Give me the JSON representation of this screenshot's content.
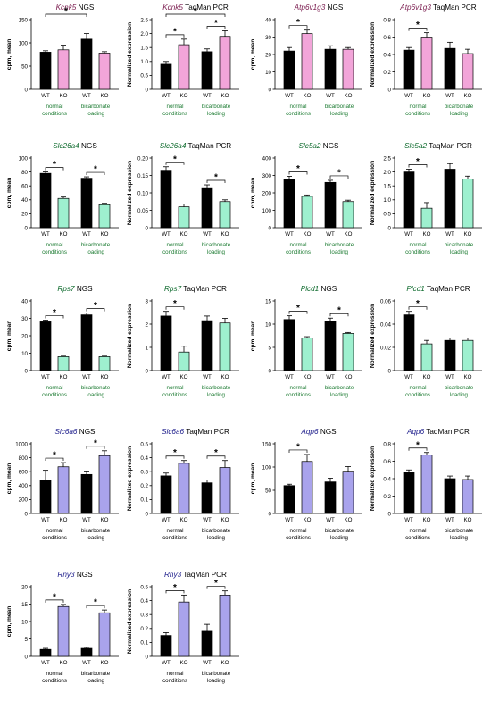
{
  "colors": {
    "wt": "#000000",
    "ko_pink": "#f2a5d9",
    "ko_green": "#9ef0cf",
    "ko_blue": "#a9a3ec",
    "title_pink": "#7a1b4e",
    "title_green": "#0f6b2e",
    "title_blue": "#1f1f8c",
    "cond_text": "#1a7a30"
  },
  "chart_data": [
    {
      "type": "bar",
      "title": "Kcnk5 NGS",
      "title_gene": "Kcnk5",
      "title_method": "NGS",
      "ylabel": "cpm, mean",
      "ylim": [
        0,
        150
      ],
      "yticks": [
        "0",
        "50",
        "100",
        "150"
      ],
      "genotypes": [
        "WT",
        "KO"
      ],
      "conditions": [
        "normal conditions",
        "bicarbonate loading"
      ],
      "values": [
        80,
        85,
        108,
        78
      ],
      "errors": [
        3,
        10,
        12,
        3
      ],
      "ko_color": "pink",
      "title_color": "pink",
      "sig": [
        {
          "a": 0,
          "b": 2,
          "label": "*"
        }
      ]
    },
    {
      "type": "bar",
      "title": "Kcnk5 TaqMan PCR",
      "title_gene": "Kcnk5",
      "title_method": "TaqMan PCR",
      "ylabel": "Normalized expression",
      "ylim": [
        0,
        2.5
      ],
      "yticks": [
        "0",
        "0.5",
        "1.0",
        "1.5",
        "2.0",
        "2.5"
      ],
      "genotypes": [
        "WT",
        "KO"
      ],
      "conditions": [
        "normal conditions",
        "bicarbonate loading"
      ],
      "values": [
        0.9,
        1.6,
        1.35,
        1.9
      ],
      "errors": [
        0.1,
        0.2,
        0.1,
        0.2
      ],
      "ko_color": "pink",
      "title_color": "pink",
      "sig": [
        {
          "a": 0,
          "b": 1,
          "label": "*"
        },
        {
          "a": 2,
          "b": 3,
          "label": "*"
        },
        {
          "a": 0,
          "b": 3,
          "label": "*"
        }
      ]
    },
    {
      "type": "bar",
      "title": "Atp6v1g3 NGS",
      "title_gene": "Atp6v1g3",
      "title_method": "NGS",
      "ylabel": "cpm, mean",
      "ylim": [
        0,
        40
      ],
      "yticks": [
        "0",
        "10",
        "20",
        "30",
        "40"
      ],
      "genotypes": [
        "WT",
        "KO"
      ],
      "conditions": [
        "normal conditions",
        "bicarbonate loading"
      ],
      "values": [
        22,
        32,
        23,
        23
      ],
      "errors": [
        2,
        2,
        2,
        1
      ],
      "ko_color": "pink",
      "title_color": "pink",
      "sig": [
        {
          "a": 0,
          "b": 1,
          "label": "*"
        }
      ]
    },
    {
      "type": "bar",
      "title": "Atp6v1g3 TaqMan PCR",
      "title_gene": "Atp6v1g3",
      "title_method": "TaqMan PCR",
      "ylabel": "Normalized expression",
      "ylim": [
        0,
        0.8
      ],
      "yticks": [
        "0",
        "0.2",
        "0.4",
        "0.6",
        "0.8"
      ],
      "genotypes": [
        "WT",
        "KO"
      ],
      "conditions": [
        "normal conditions",
        "bicarbonate loading"
      ],
      "values": [
        0.45,
        0.6,
        0.47,
        0.41
      ],
      "errors": [
        0.03,
        0.05,
        0.07,
        0.05
      ],
      "ko_color": "pink",
      "title_color": "pink",
      "sig": [
        {
          "a": 0,
          "b": 1,
          "label": "*"
        }
      ]
    },
    {
      "type": "bar",
      "title": "Slc26a4 NGS",
      "title_gene": "Slc26a4",
      "title_method": "NGS",
      "ylabel": "cpm, mean",
      "ylim": [
        0,
        100
      ],
      "yticks": [
        "0",
        "20",
        "40",
        "60",
        "80",
        "100"
      ],
      "genotypes": [
        "WT",
        "KO"
      ],
      "conditions": [
        "normal conditions",
        "bicarbonate loading"
      ],
      "values": [
        78,
        42,
        71,
        33
      ],
      "errors": [
        2,
        2,
        2,
        2
      ],
      "ko_color": "green",
      "title_color": "green",
      "sig": [
        {
          "a": 0,
          "b": 1,
          "label": "*"
        },
        {
          "a": 2,
          "b": 3,
          "label": "*"
        }
      ]
    },
    {
      "type": "bar",
      "title": "Slc26a4 TaqMan PCR",
      "title_gene": "Slc26a4",
      "title_method": "TaqMan PCR",
      "ylabel": "Normalized expression",
      "ylim": [
        0,
        0.2
      ],
      "yticks": [
        "0",
        "0.05",
        "0.10",
        "0.15",
        "0.20"
      ],
      "genotypes": [
        "WT",
        "KO"
      ],
      "conditions": [
        "normal conditions",
        "bicarbonate loading"
      ],
      "values": [
        0.165,
        0.06,
        0.115,
        0.075
      ],
      "errors": [
        0.01,
        0.008,
        0.008,
        0.005
      ],
      "ko_color": "green",
      "title_color": "green",
      "sig": [
        {
          "a": 0,
          "b": 1,
          "label": "*"
        },
        {
          "a": 2,
          "b": 3,
          "label": "*"
        }
      ]
    },
    {
      "type": "bar",
      "title": "Slc5a2 NGS",
      "title_gene": "Slc5a2",
      "title_method": "NGS",
      "ylabel": "cpm, mean",
      "ylim": [
        0,
        400
      ],
      "yticks": [
        "0",
        "100",
        "200",
        "300",
        "400"
      ],
      "genotypes": [
        "WT",
        "KO"
      ],
      "conditions": [
        "normal conditions",
        "bicarbonate loading"
      ],
      "values": [
        280,
        180,
        260,
        150
      ],
      "errors": [
        15,
        8,
        12,
        8
      ],
      "ko_color": "green",
      "title_color": "green",
      "sig": [
        {
          "a": 0,
          "b": 1,
          "label": "*"
        },
        {
          "a": 2,
          "b": 3,
          "label": "*"
        }
      ]
    },
    {
      "type": "bar",
      "title": "Slc5a2 TaqMan PCR",
      "title_gene": "Slc5a2",
      "title_method": "TaqMan PCR",
      "ylabel": "Normalized expression",
      "ylim": [
        0,
        2.5
      ],
      "yticks": [
        "0",
        "0.5",
        "1.0",
        "1.5",
        "2.0",
        "2.5"
      ],
      "genotypes": [
        "WT",
        "KO"
      ],
      "conditions": [
        "normal conditions",
        "bicarbonate loading"
      ],
      "values": [
        2.0,
        0.7,
        2.1,
        1.75
      ],
      "errors": [
        0.1,
        0.2,
        0.2,
        0.1
      ],
      "ko_color": "green",
      "title_color": "green",
      "sig": [
        {
          "a": 0,
          "b": 1,
          "label": "*"
        }
      ]
    },
    {
      "type": "bar",
      "title": "Rps7 NGS",
      "title_gene": "Rps7",
      "title_method": "NGS",
      "ylabel": "cpm, mean",
      "ylim": [
        0,
        40
      ],
      "yticks": [
        "0",
        "10",
        "20",
        "30",
        "40"
      ],
      "genotypes": [
        "WT",
        "KO"
      ],
      "conditions": [
        "normal conditions",
        "bicarbonate loading"
      ],
      "values": [
        28,
        8,
        32,
        8
      ],
      "errors": [
        1,
        0.3,
        1,
        0.3
      ],
      "ko_color": "green",
      "title_color": "green",
      "sig": [
        {
          "a": 0,
          "b": 1,
          "label": "*"
        },
        {
          "a": 2,
          "b": 3,
          "label": "*"
        }
      ]
    },
    {
      "type": "bar",
      "title": "Rps7 TaqMan PCR",
      "title_gene": "Rps7",
      "title_method": "TaqMan PCR",
      "ylabel": "Normalized expression",
      "ylim": [
        0,
        3
      ],
      "yticks": [
        "0",
        "1",
        "2",
        "3"
      ],
      "genotypes": [
        "WT",
        "KO"
      ],
      "conditions": [
        "normal conditions",
        "bicarbonate loading"
      ],
      "values": [
        2.35,
        0.8,
        2.15,
        2.05
      ],
      "errors": [
        0.2,
        0.25,
        0.2,
        0.2
      ],
      "ko_color": "green",
      "title_color": "green",
      "sig": [
        {
          "a": 0,
          "b": 1,
          "label": "*"
        }
      ]
    },
    {
      "type": "bar",
      "title": "Plcd1 NGS",
      "title_gene": "Plcd1",
      "title_method": "NGS",
      "ylabel": "cpm, mean",
      "ylim": [
        0,
        15
      ],
      "yticks": [
        "0",
        "5",
        "10",
        "15"
      ],
      "genotypes": [
        "WT",
        "KO"
      ],
      "conditions": [
        "normal conditions",
        "bicarbonate loading"
      ],
      "values": [
        11,
        7,
        10.7,
        8
      ],
      "errors": [
        0.8,
        0.3,
        0.6,
        0.2
      ],
      "ko_color": "green",
      "title_color": "green",
      "sig": [
        {
          "a": 0,
          "b": 1,
          "label": "*"
        },
        {
          "a": 2,
          "b": 3,
          "label": "*"
        }
      ]
    },
    {
      "type": "bar",
      "title": "Plcd1 TaqMan PCR",
      "title_gene": "Plcd1",
      "title_method": "TaqMan PCR",
      "ylabel": "Normalized expression",
      "ylim": [
        0,
        0.06
      ],
      "yticks": [
        "0",
        "0.02",
        "0.04",
        "0.06"
      ],
      "genotypes": [
        "WT",
        "KO"
      ],
      "conditions": [
        "normal conditions",
        "bicarbonate loading"
      ],
      "values": [
        0.048,
        0.023,
        0.026,
        0.026
      ],
      "errors": [
        0.003,
        0.003,
        0.002,
        0.002
      ],
      "ko_color": "green",
      "title_color": "green",
      "sig": [
        {
          "a": 0,
          "b": 1,
          "label": "*"
        }
      ]
    },
    {
      "type": "bar",
      "title": "Slc6a6 NGS",
      "title_gene": "Slc6a6",
      "title_method": "NGS",
      "ylabel": "cpm, mean",
      "ylim": [
        0,
        1000
      ],
      "yticks": [
        "0",
        "200",
        "400",
        "600",
        "800",
        "1000"
      ],
      "genotypes": [
        "WT",
        "KO"
      ],
      "conditions": [
        "normal conditions",
        "bicarbonate loading"
      ],
      "values": [
        470,
        670,
        560,
        830
      ],
      "errors": [
        150,
        60,
        50,
        70
      ],
      "ko_color": "blue",
      "title_color": "blue",
      "sig": [
        {
          "a": 0,
          "b": 1,
          "label": "*"
        },
        {
          "a": 2,
          "b": 3,
          "label": "*"
        }
      ]
    },
    {
      "type": "bar",
      "title": "Slc6a6 TaqMan PCR",
      "title_gene": "Slc6a6",
      "title_method": "TaqMan PCR",
      "ylabel": "Normalized expression",
      "ylim": [
        0,
        0.5
      ],
      "yticks": [
        "0",
        "0.1",
        "0.2",
        "0.3",
        "0.4",
        "0.5"
      ],
      "genotypes": [
        "WT",
        "KO"
      ],
      "conditions": [
        "normal conditions",
        "bicarbonate loading"
      ],
      "values": [
        0.27,
        0.36,
        0.22,
        0.33
      ],
      "errors": [
        0.02,
        0.02,
        0.02,
        0.05
      ],
      "ko_color": "blue",
      "title_color": "blue",
      "sig": [
        {
          "a": 0,
          "b": 1,
          "label": "*"
        },
        {
          "a": 2,
          "b": 3,
          "label": "*"
        }
      ]
    },
    {
      "type": "bar",
      "title": "Aqp6 NGS",
      "title_gene": "Aqp6",
      "title_method": "NGS",
      "ylabel": "cpm, mean",
      "ylim": [
        0,
        150
      ],
      "yticks": [
        "0",
        "50",
        "100",
        "150"
      ],
      "genotypes": [
        "WT",
        "KO"
      ],
      "conditions": [
        "normal conditions",
        "bicarbonate loading"
      ],
      "values": [
        60,
        112,
        68,
        91
      ],
      "errors": [
        3,
        15,
        8,
        10
      ],
      "ko_color": "blue",
      "title_color": "blue",
      "sig": [
        {
          "a": 0,
          "b": 1,
          "label": "*"
        }
      ]
    },
    {
      "type": "bar",
      "title": "Aqp6 TaqMan PCR",
      "title_gene": "Aqp6",
      "title_method": "TaqMan PCR",
      "ylabel": "Normalized expression",
      "ylim": [
        0,
        0.8
      ],
      "yticks": [
        "0",
        "0.2",
        "0.4",
        "0.6",
        "0.8"
      ],
      "genotypes": [
        "WT",
        "KO"
      ],
      "conditions": [
        "normal conditions",
        "bicarbonate loading"
      ],
      "values": [
        0.47,
        0.67,
        0.4,
        0.39
      ],
      "errors": [
        0.03,
        0.03,
        0.03,
        0.04
      ],
      "ko_color": "blue",
      "title_color": "blue",
      "sig": [
        {
          "a": 0,
          "b": 1,
          "label": "*"
        }
      ]
    },
    {
      "type": "bar",
      "title": "Rny3 NGS",
      "title_gene": "Rny3",
      "title_method": "NGS",
      "ylabel": "cpm, mean",
      "ylim": [
        0,
        20
      ],
      "yticks": [
        "0",
        "5",
        "10",
        "15",
        "20"
      ],
      "genotypes": [
        "WT",
        "KO"
      ],
      "conditions": [
        "normal conditions",
        "bicarbonate loading"
      ],
      "values": [
        2,
        14.3,
        2.3,
        12.5
      ],
      "errors": [
        0.3,
        0.6,
        0.3,
        0.8
      ],
      "ko_color": "blue",
      "title_color": "blue",
      "sig": [
        {
          "a": 0,
          "b": 1,
          "label": "*"
        },
        {
          "a": 2,
          "b": 3,
          "label": "*"
        }
      ]
    },
    {
      "type": "bar",
      "title": "Rny3 TaqMan PCR",
      "title_gene": "Rny3",
      "title_method": "TaqMan PCR",
      "ylabel": "Normalized expression",
      "ylim": [
        0,
        0.5
      ],
      "yticks": [
        "0",
        "0.1",
        "0.2",
        "0.3",
        "0.4",
        "0.5"
      ],
      "genotypes": [
        "WT",
        "KO"
      ],
      "conditions": [
        "normal conditions",
        "bicarbonate loading"
      ],
      "values": [
        0.15,
        0.39,
        0.18,
        0.44
      ],
      "errors": [
        0.02,
        0.05,
        0.05,
        0.03
      ],
      "ko_color": "blue",
      "title_color": "blue",
      "sig": [
        {
          "a": 0,
          "b": 1,
          "label": "*"
        },
        {
          "a": 2,
          "b": 3,
          "label": "*"
        }
      ]
    }
  ]
}
